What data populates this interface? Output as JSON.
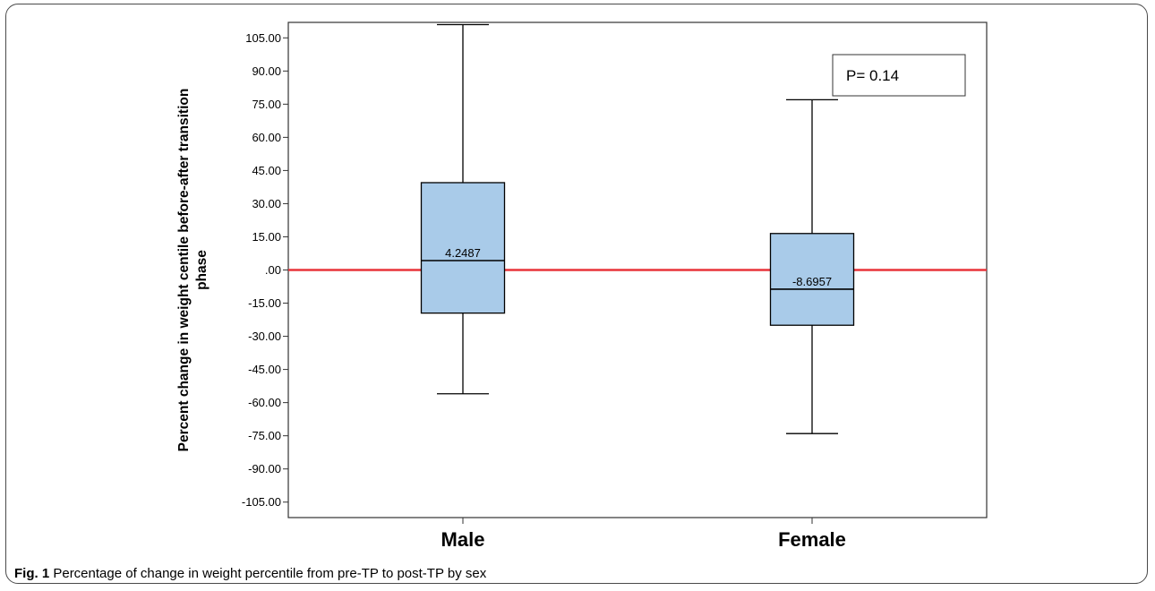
{
  "chart_data": {
    "type": "box",
    "ylabel": "Percent change in weight centile before-after transition phase",
    "ylabel_lines": [
      "Percent change in weight centile before-after transition",
      "phase"
    ],
    "ylim": [
      -112,
      112
    ],
    "yticks": [
      105,
      90,
      75,
      60,
      45,
      30,
      15,
      0,
      -15,
      -30,
      -45,
      -60,
      -75,
      -90,
      -105
    ],
    "ytick_labels": [
      "105.00",
      "90.00",
      "75.00",
      "60.00",
      "45.00",
      "30.00",
      "15.00",
      ".00",
      "-15.00",
      "-30.00",
      "-45.00",
      "-60.00",
      "-75.00",
      "-90.00",
      "-105.00"
    ],
    "categories": [
      "Male",
      "Female"
    ],
    "boxes": [
      {
        "category": "Male",
        "whisker_low": -56,
        "q1": -19.5,
        "median": 4.2487,
        "q3": 39.5,
        "whisker_high": 111,
        "median_label": "4.2487"
      },
      {
        "category": "Female",
        "whisker_low": -74,
        "q1": -25,
        "median": -8.6957,
        "q3": 16.5,
        "whisker_high": 77,
        "median_label": "-8.6957"
      }
    ],
    "reference_line": {
      "y": 0,
      "color": "#e8333a"
    },
    "annotation": "P= 0.14",
    "box_fill": "#a9cbe9",
    "grid": false
  },
  "caption": {
    "label": "Fig. 1",
    "text": "Percentage of change in weight percentile from pre-TP to post-TP by sex"
  }
}
